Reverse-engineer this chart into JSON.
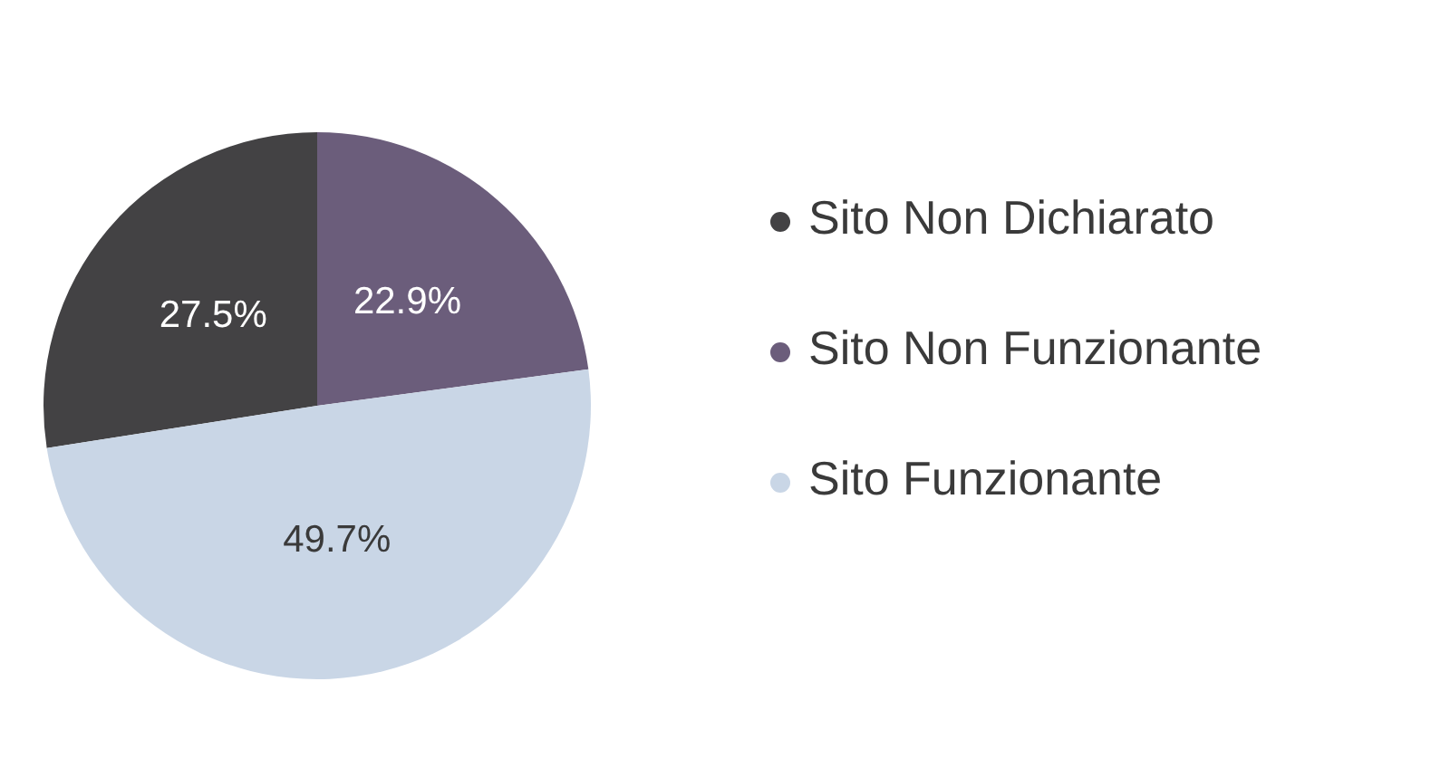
{
  "chart_data": {
    "type": "pie",
    "categories": [
      "Sito Non Dichiarato",
      "Sito Non Funzionante",
      "Sito Funzionante"
    ],
    "values": [
      27.5,
      22.9,
      49.7
    ],
    "colors": [
      "#434244",
      "#6b5d7b",
      "#c9d6e6"
    ],
    "value_labels": [
      "27.5%",
      "22.9%",
      "49.7%"
    ],
    "legend": "right"
  }
}
